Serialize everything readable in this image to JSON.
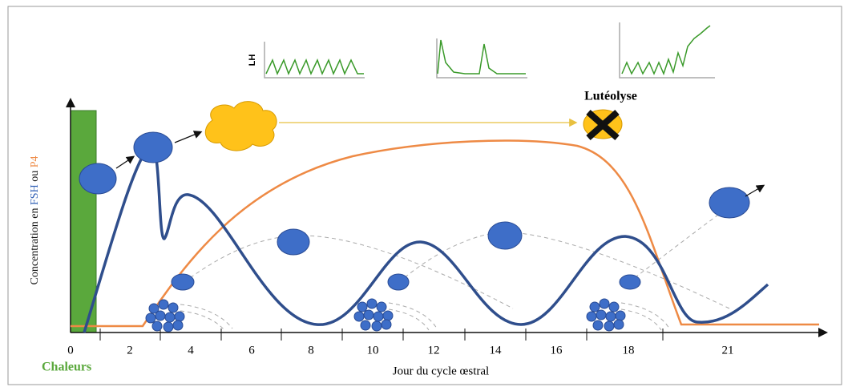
{
  "lh_label": "LH",
  "luteolysis_label": "Lutéolyse",
  "y_axis_label": {
    "prefix": "Concentration en ",
    "fsh": "FSH",
    "middle": " ou ",
    "p4": "P4"
  },
  "x_axis_label": "Jour du cycle œstral",
  "heat_label": "Chaleurs",
  "x_tick_labels": [
    "0",
    "2",
    "4",
    "6",
    "8",
    "10",
    "12",
    "14",
    "16",
    "18",
    "21"
  ]
}
